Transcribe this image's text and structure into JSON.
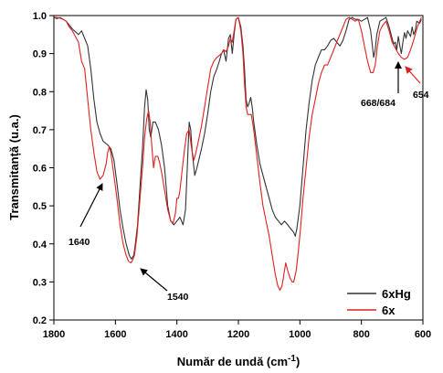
{
  "chart_data": {
    "type": "line",
    "xlabel": "Număr de undă (cm",
    "xlabel_sup": "-1",
    "xlabel_close": ")",
    "ylabel": "Transmitanță (u.a.)",
    "xlim": [
      1800,
      600
    ],
    "ylim": [
      0.2,
      1.0
    ],
    "x_reversed": true,
    "x_ticks": [
      "1800",
      "1600",
      "1400",
      "1200",
      "1000",
      "800",
      "600"
    ],
    "y_ticks": [
      "0.2",
      "0.3",
      "0.4",
      "0.5",
      "0.6",
      "0.7",
      "0.8",
      "0.9",
      "1.0"
    ],
    "x_tick_values": [
      1800,
      1600,
      1400,
      1200,
      1000,
      800,
      600
    ],
    "y_tick_values": [
      0.2,
      0.3,
      0.4,
      0.5,
      0.6,
      0.7,
      0.8,
      0.9,
      1.0
    ],
    "grid": false,
    "legend_position": "bottom-right",
    "series": [
      {
        "name": "6xHg",
        "color": "#333333",
        "points": [
          [
            1800,
            0.995
          ],
          [
            1790,
            0.992
          ],
          [
            1780,
            0.995
          ],
          [
            1770,
            0.99
          ],
          [
            1760,
            0.985
          ],
          [
            1750,
            0.975
          ],
          [
            1740,
            0.965
          ],
          [
            1720,
            0.95
          ],
          [
            1710,
            0.96
          ],
          [
            1700,
            0.94
          ],
          [
            1690,
            0.92
          ],
          [
            1680,
            0.86
          ],
          [
            1670,
            0.78
          ],
          [
            1660,
            0.72
          ],
          [
            1650,
            0.69
          ],
          [
            1640,
            0.67
          ],
          [
            1625,
            0.66
          ],
          [
            1615,
            0.65
          ],
          [
            1605,
            0.62
          ],
          [
            1595,
            0.56
          ],
          [
            1585,
            0.49
          ],
          [
            1575,
            0.44
          ],
          [
            1565,
            0.4
          ],
          [
            1555,
            0.37
          ],
          [
            1548,
            0.36
          ],
          [
            1540,
            0.37
          ],
          [
            1535,
            0.4
          ],
          [
            1528,
            0.45
          ],
          [
            1520,
            0.55
          ],
          [
            1512,
            0.65
          ],
          [
            1505,
            0.76
          ],
          [
            1500,
            0.805
          ],
          [
            1495,
            0.78
          ],
          [
            1490,
            0.7
          ],
          [
            1485,
            0.68
          ],
          [
            1478,
            0.72
          ],
          [
            1470,
            0.72
          ],
          [
            1460,
            0.7
          ],
          [
            1450,
            0.66
          ],
          [
            1440,
            0.6
          ],
          [
            1430,
            0.5
          ],
          [
            1420,
            0.46
          ],
          [
            1410,
            0.45
          ],
          [
            1400,
            0.46
          ],
          [
            1390,
            0.47
          ],
          [
            1380,
            0.45
          ],
          [
            1372,
            0.49
          ],
          [
            1365,
            0.62
          ],
          [
            1360,
            0.72
          ],
          [
            1355,
            0.7
          ],
          [
            1350,
            0.64
          ],
          [
            1342,
            0.58
          ],
          [
            1335,
            0.6
          ],
          [
            1320,
            0.65
          ],
          [
            1310,
            0.69
          ],
          [
            1300,
            0.74
          ],
          [
            1290,
            0.8
          ],
          [
            1280,
            0.84
          ],
          [
            1270,
            0.86
          ],
          [
            1262,
            0.88
          ],
          [
            1255,
            0.9
          ],
          [
            1248,
            0.91
          ],
          [
            1240,
            0.88
          ],
          [
            1232,
            0.94
          ],
          [
            1226,
            0.95
          ],
          [
            1220,
            0.9
          ],
          [
            1214,
            0.95
          ],
          [
            1208,
            0.99
          ],
          [
            1200,
            0.995
          ],
          [
            1192,
            0.97
          ],
          [
            1185,
            0.92
          ],
          [
            1180,
            0.86
          ],
          [
            1175,
            0.78
          ],
          [
            1170,
            0.76
          ],
          [
            1165,
            0.77
          ],
          [
            1160,
            0.785
          ],
          [
            1155,
            0.76
          ],
          [
            1150,
            0.72
          ],
          [
            1140,
            0.66
          ],
          [
            1130,
            0.61
          ],
          [
            1120,
            0.58
          ],
          [
            1110,
            0.55
          ],
          [
            1100,
            0.52
          ],
          [
            1090,
            0.49
          ],
          [
            1080,
            0.47
          ],
          [
            1070,
            0.46
          ],
          [
            1060,
            0.45
          ],
          [
            1050,
            0.46
          ],
          [
            1040,
            0.45
          ],
          [
            1030,
            0.44
          ],
          [
            1020,
            0.43
          ],
          [
            1015,
            0.42
          ],
          [
            1010,
            0.44
          ],
          [
            1000,
            0.5
          ],
          [
            990,
            0.6
          ],
          [
            980,
            0.7
          ],
          [
            970,
            0.77
          ],
          [
            960,
            0.83
          ],
          [
            950,
            0.87
          ],
          [
            940,
            0.89
          ],
          [
            930,
            0.91
          ],
          [
            920,
            0.91
          ],
          [
            910,
            0.92
          ],
          [
            900,
            0.935
          ],
          [
            890,
            0.94
          ],
          [
            880,
            0.93
          ],
          [
            870,
            0.92
          ],
          [
            860,
            0.935
          ],
          [
            850,
            0.96
          ],
          [
            840,
            0.99
          ],
          [
            830,
            0.995
          ],
          [
            820,
            0.99
          ],
          [
            810,
            0.99
          ],
          [
            800,
            0.985
          ],
          [
            790,
            0.99
          ],
          [
            780,
            0.995
          ],
          [
            770,
            0.96
          ],
          [
            760,
            0.89
          ],
          [
            755,
            0.91
          ],
          [
            750,
            0.95
          ],
          [
            740,
            0.985
          ],
          [
            730,
            0.99
          ],
          [
            720,
            0.995
          ],
          [
            710,
            0.97
          ],
          [
            700,
            0.94
          ],
          [
            695,
            0.925
          ],
          [
            690,
            0.93
          ],
          [
            685,
            0.91
          ],
          [
            680,
            0.945
          ],
          [
            675,
            0.92
          ],
          [
            670,
            0.9
          ],
          [
            665,
            0.93
          ],
          [
            660,
            0.955
          ],
          [
            655,
            0.94
          ],
          [
            650,
            0.96
          ],
          [
            640,
            0.945
          ],
          [
            635,
            0.97
          ],
          [
            630,
            0.95
          ],
          [
            625,
            0.96
          ],
          [
            620,
            0.985
          ],
          [
            610,
            0.98
          ],
          [
            605,
            0.99
          ]
        ]
      },
      {
        "name": "6x",
        "color": "#e02020",
        "points": [
          [
            1800,
            0.995
          ],
          [
            1790,
            0.995
          ],
          [
            1780,
            0.993
          ],
          [
            1770,
            0.99
          ],
          [
            1760,
            0.985
          ],
          [
            1750,
            0.97
          ],
          [
            1740,
            0.96
          ],
          [
            1720,
            0.93
          ],
          [
            1710,
            0.88
          ],
          [
            1700,
            0.86
          ],
          [
            1690,
            0.78
          ],
          [
            1680,
            0.7
          ],
          [
            1670,
            0.64
          ],
          [
            1660,
            0.59
          ],
          [
            1650,
            0.57
          ],
          [
            1640,
            0.58
          ],
          [
            1630,
            0.61
          ],
          [
            1625,
            0.64
          ],
          [
            1620,
            0.655
          ],
          [
            1615,
            0.64
          ],
          [
            1605,
            0.58
          ],
          [
            1595,
            0.52
          ],
          [
            1585,
            0.45
          ],
          [
            1575,
            0.4
          ],
          [
            1565,
            0.37
          ],
          [
            1558,
            0.355
          ],
          [
            1550,
            0.35
          ],
          [
            1545,
            0.355
          ],
          [
            1538,
            0.37
          ],
          [
            1530,
            0.42
          ],
          [
            1520,
            0.52
          ],
          [
            1512,
            0.6
          ],
          [
            1505,
            0.68
          ],
          [
            1498,
            0.73
          ],
          [
            1492,
            0.75
          ],
          [
            1487,
            0.72
          ],
          [
            1482,
            0.66
          ],
          [
            1476,
            0.6
          ],
          [
            1470,
            0.63
          ],
          [
            1462,
            0.63
          ],
          [
            1455,
            0.61
          ],
          [
            1448,
            0.58
          ],
          [
            1440,
            0.54
          ],
          [
            1430,
            0.49
          ],
          [
            1420,
            0.46
          ],
          [
            1412,
            0.455
          ],
          [
            1405,
            0.48
          ],
          [
            1400,
            0.52
          ],
          [
            1395,
            0.52
          ],
          [
            1390,
            0.54
          ],
          [
            1382,
            0.6
          ],
          [
            1375,
            0.65
          ],
          [
            1368,
            0.69
          ],
          [
            1360,
            0.7
          ],
          [
            1352,
            0.65
          ],
          [
            1345,
            0.62
          ],
          [
            1338,
            0.64
          ],
          [
            1330,
            0.67
          ],
          [
            1320,
            0.71
          ],
          [
            1310,
            0.76
          ],
          [
            1300,
            0.81
          ],
          [
            1290,
            0.86
          ],
          [
            1280,
            0.88
          ],
          [
            1270,
            0.89
          ],
          [
            1262,
            0.895
          ],
          [
            1255,
            0.9
          ],
          [
            1248,
            0.91
          ],
          [
            1240,
            0.905
          ],
          [
            1232,
            0.92
          ],
          [
            1226,
            0.94
          ],
          [
            1220,
            0.93
          ],
          [
            1214,
            0.96
          ],
          [
            1208,
            0.99
          ],
          [
            1200,
            0.995
          ],
          [
            1192,
            0.96
          ],
          [
            1185,
            0.9
          ],
          [
            1180,
            0.82
          ],
          [
            1175,
            0.76
          ],
          [
            1170,
            0.74
          ],
          [
            1165,
            0.74
          ],
          [
            1158,
            0.74
          ],
          [
            1150,
            0.7
          ],
          [
            1140,
            0.63
          ],
          [
            1130,
            0.56
          ],
          [
            1120,
            0.5
          ],
          [
            1110,
            0.46
          ],
          [
            1100,
            0.42
          ],
          [
            1090,
            0.37
          ],
          [
            1080,
            0.32
          ],
          [
            1072,
            0.29
          ],
          [
            1065,
            0.278
          ],
          [
            1058,
            0.29
          ],
          [
            1052,
            0.32
          ],
          [
            1046,
            0.35
          ],
          [
            1040,
            0.33
          ],
          [
            1032,
            0.31
          ],
          [
            1025,
            0.3
          ],
          [
            1020,
            0.3
          ],
          [
            1012,
            0.33
          ],
          [
            1005,
            0.38
          ],
          [
            998,
            0.44
          ],
          [
            990,
            0.52
          ],
          [
            980,
            0.6
          ],
          [
            970,
            0.68
          ],
          [
            960,
            0.74
          ],
          [
            950,
            0.78
          ],
          [
            940,
            0.82
          ],
          [
            930,
            0.85
          ],
          [
            920,
            0.87
          ],
          [
            910,
            0.87
          ],
          [
            900,
            0.89
          ],
          [
            890,
            0.91
          ],
          [
            880,
            0.93
          ],
          [
            870,
            0.95
          ],
          [
            860,
            0.97
          ],
          [
            850,
            0.99
          ],
          [
            840,
            0.995
          ],
          [
            830,
            0.99
          ],
          [
            820,
            0.985
          ],
          [
            810,
            0.99
          ],
          [
            800,
            0.96
          ],
          [
            790,
            0.92
          ],
          [
            780,
            0.88
          ],
          [
            770,
            0.85
          ],
          [
            762,
            0.85
          ],
          [
            755,
            0.87
          ],
          [
            748,
            0.92
          ],
          [
            740,
            0.96
          ],
          [
            730,
            0.975
          ],
          [
            720,
            0.985
          ],
          [
            710,
            0.96
          ],
          [
            700,
            0.93
          ],
          [
            690,
            0.915
          ],
          [
            680,
            0.9
          ],
          [
            670,
            0.89
          ],
          [
            660,
            0.885
          ],
          [
            650,
            0.89
          ],
          [
            640,
            0.91
          ],
          [
            632,
            0.93
          ],
          [
            625,
            0.95
          ],
          [
            618,
            0.97
          ],
          [
            610,
            0.985
          ],
          [
            605,
            0.995
          ]
        ]
      }
    ],
    "annotations": [
      {
        "text": "1640",
        "x": 1640,
        "y": 0.58,
        "color": "#000000"
      },
      {
        "text": "1540",
        "x": 1540,
        "y": 0.36,
        "color": "#000000"
      },
      {
        "text": "668/684",
        "x": 676,
        "y": 0.905,
        "color": "#000000"
      },
      {
        "text": "654",
        "x": 654,
        "y": 0.885,
        "color": "#e02020"
      }
    ]
  }
}
